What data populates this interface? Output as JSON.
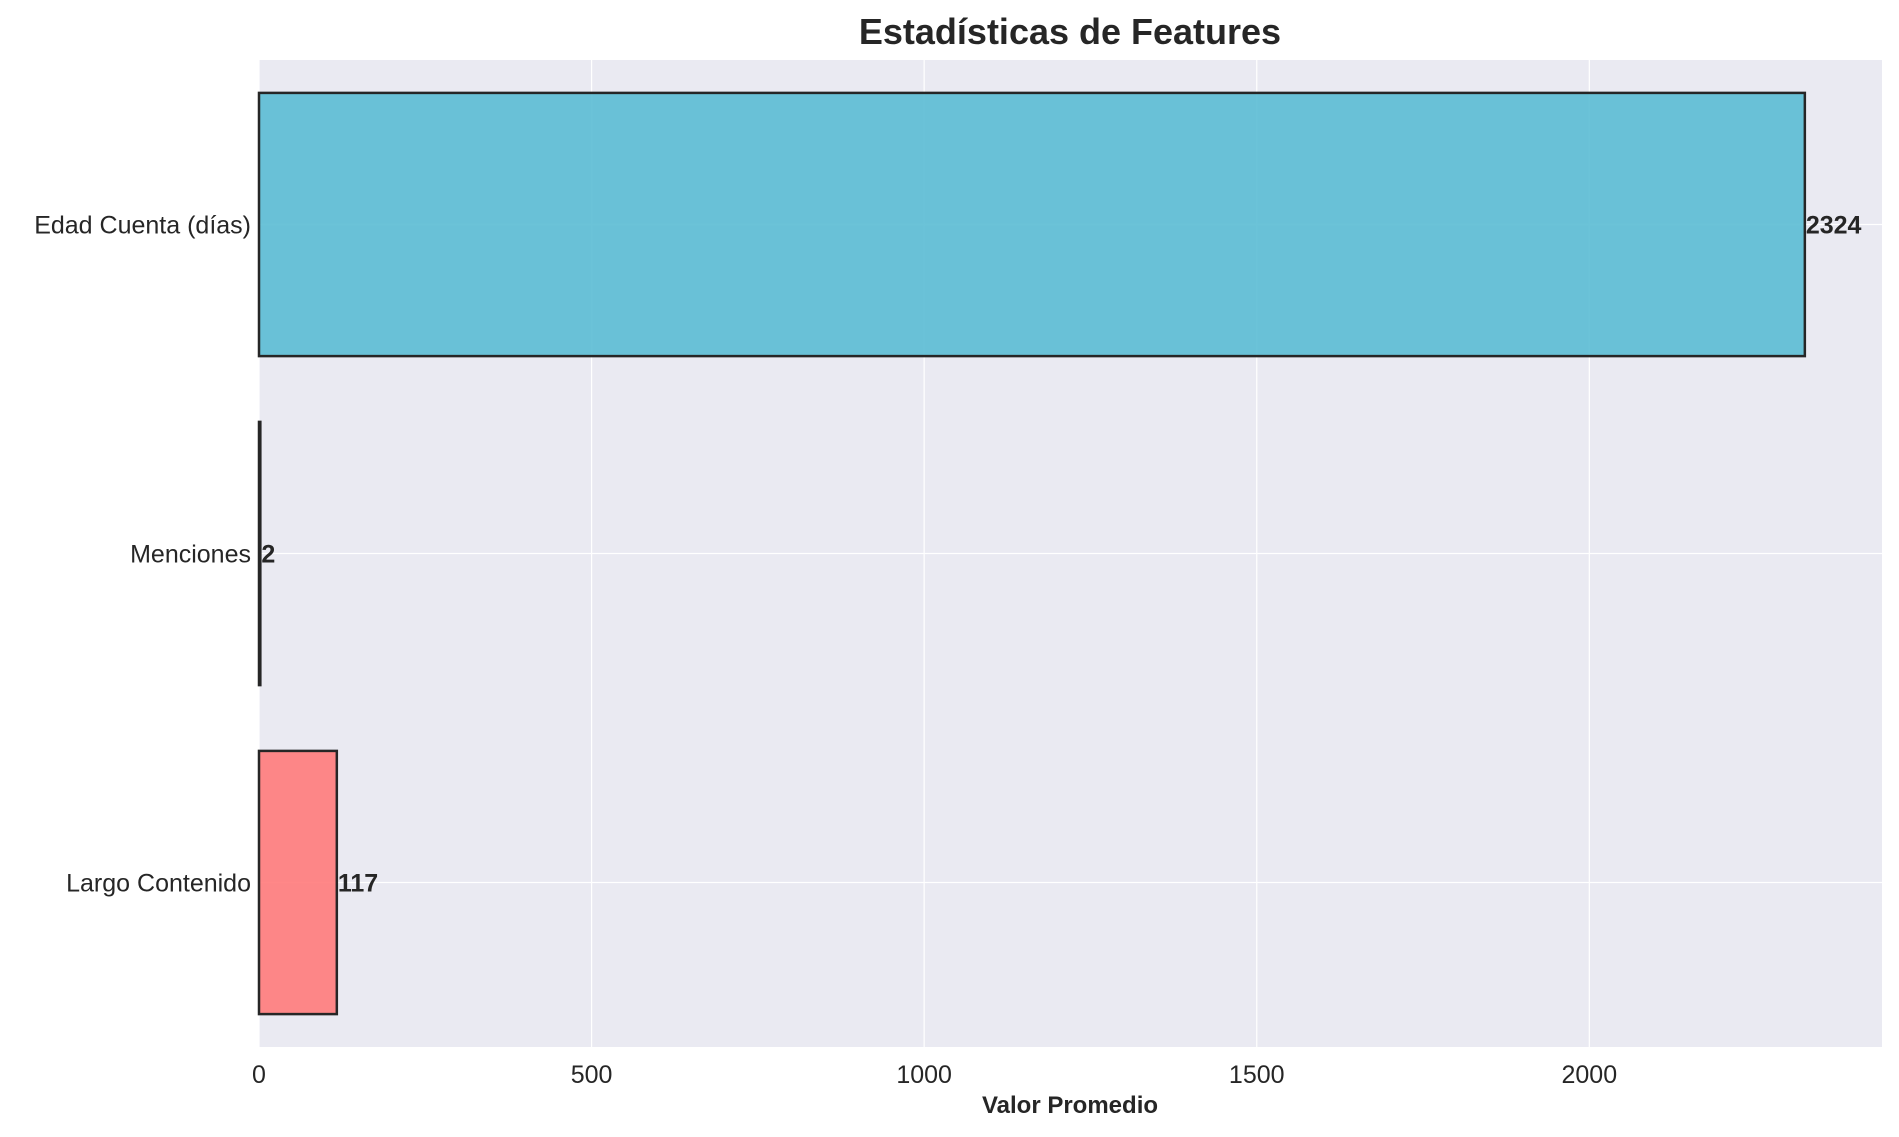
{
  "chart_data": {
    "type": "bar",
    "orientation": "horizontal",
    "title": "Estadísticas de Features",
    "xlabel": "Valor Promedio",
    "ylabel": "",
    "categories": [
      "Edad Cuenta (días)",
      "Menciones",
      "Largo Contenido"
    ],
    "values": [
      2324,
      2,
      117
    ],
    "data_labels": [
      "2324",
      "2",
      "117"
    ],
    "bar_colors": [
      "#5bbcd4",
      "#2b2b2b",
      "#ff7b7b"
    ],
    "x_ticks": [
      0,
      500,
      1000,
      1500,
      2000
    ],
    "x_tick_labels": [
      "0",
      "500",
      "1000",
      "1500",
      "2000"
    ],
    "xlim": [
      0,
      2440
    ],
    "grid": true,
    "background_color": "#eaeaf2",
    "grid_color": "#ffffff"
  }
}
